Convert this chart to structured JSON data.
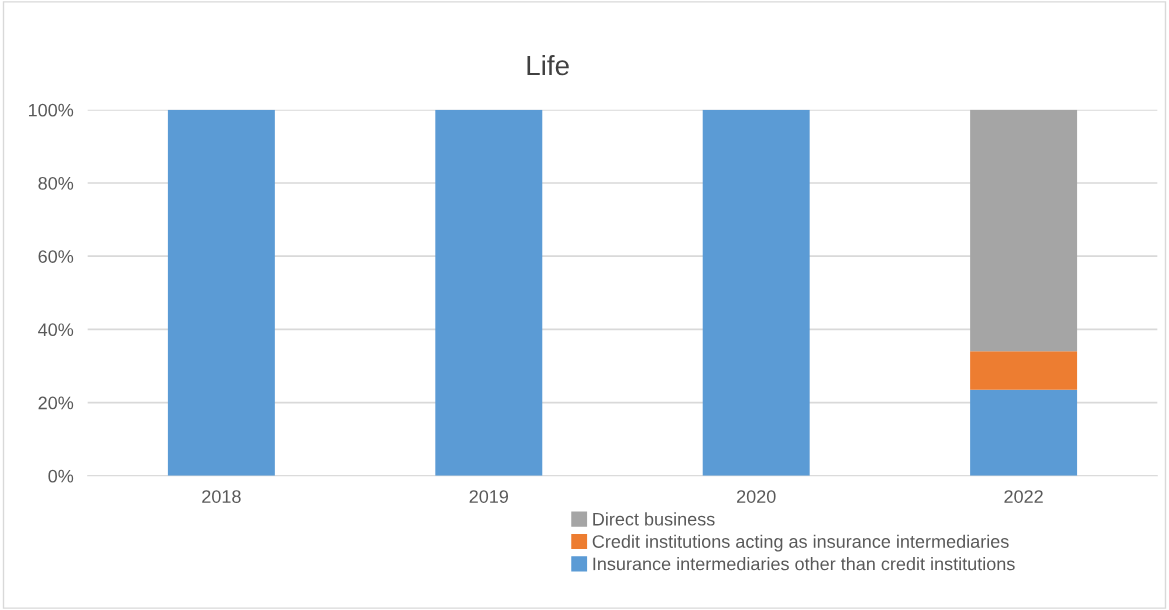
{
  "chart_data": {
    "type": "bar",
    "title": "Life",
    "stacked": true,
    "categories": [
      "2018",
      "2019",
      "2020",
      "2022"
    ],
    "series": [
      {
        "name": "Insurance intermediaries other than credit institutions",
        "color": "#5b9bd5",
        "values": [
          100,
          100,
          100,
          23.5
        ]
      },
      {
        "name": "Credit institutions acting as insurance intermediaries",
        "color": "#ed7d31",
        "values": [
          0,
          0,
          0,
          10.5
        ]
      },
      {
        "name": "Direct business",
        "color": "#a5a5a5",
        "values": [
          0,
          0,
          0,
          66
        ]
      }
    ],
    "ylim": [
      0,
      100
    ],
    "yticks": [
      {
        "value": 0,
        "label": "0%"
      },
      {
        "value": 20,
        "label": "20%"
      },
      {
        "value": 40,
        "label": "40%"
      },
      {
        "value": 60,
        "label": "60%"
      },
      {
        "value": 80,
        "label": "80%"
      },
      {
        "value": 100,
        "label": "100%"
      }
    ],
    "grid": "y",
    "legend": "bottom"
  }
}
